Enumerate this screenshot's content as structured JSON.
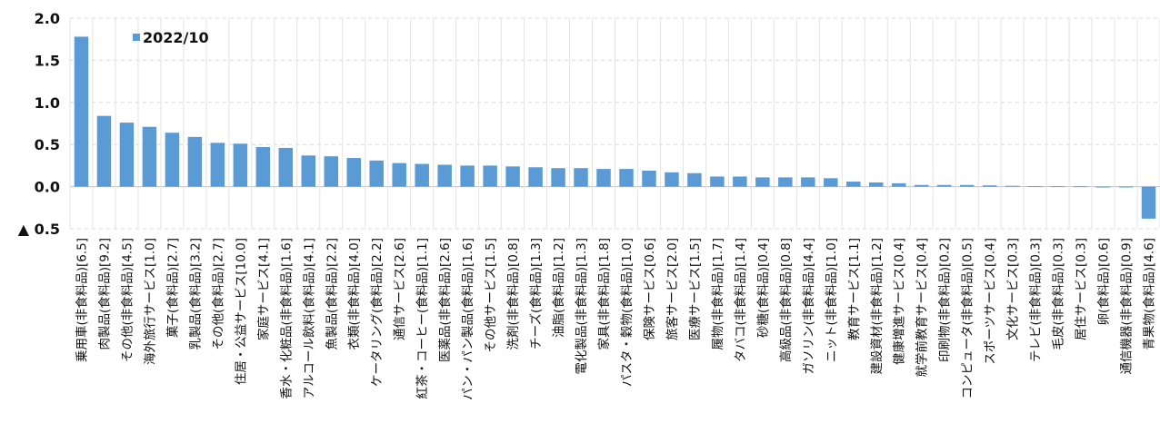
{
  "chart_data": {
    "type": "bar",
    "series": [
      {
        "name": "2022/10",
        "values": [
          1.78,
          0.84,
          0.76,
          0.71,
          0.64,
          0.59,
          0.52,
          0.51,
          0.47,
          0.46,
          0.37,
          0.36,
          0.34,
          0.31,
          0.28,
          0.27,
          0.26,
          0.25,
          0.25,
          0.24,
          0.23,
          0.22,
          0.22,
          0.21,
          0.21,
          0.19,
          0.17,
          0.16,
          0.12,
          0.12,
          0.11,
          0.11,
          0.11,
          0.1,
          0.06,
          0.05,
          0.04,
          0.02,
          0.02,
          0.02,
          0.015,
          0.01,
          0.005,
          0.005,
          0.003,
          -0.01,
          -0.01,
          -0.38
        ]
      }
    ],
    "categories": [
      "乗用車(非食料品)[6.5]",
      "肉製品(食料品)[9.2]",
      "その他(非食料品)[4.5]",
      "海外旅行サービス[1.0]",
      "菓子(食料品)[2.7]",
      "乳製品(食料品)[3.2]",
      "その他(食料品)[2.7]",
      "住居・公益サービス[10.0]",
      "家庭サービス[4.1]",
      "香水・化粧品(非食料品)[1.6]",
      "アルコール飲料(食料品)[4.1]",
      "魚製品(食料品)[2.2]",
      "衣類(非食料品)[4.0]",
      "ケータリング(食料品)[2.2]",
      "通信サービス[2.6]",
      "紅茶・コーヒー(食料品)[1.1]",
      "医薬品(非食料品)[2.6]",
      "パン・パン製品(食料品)[1.6]",
      "その他サービス[1.5]",
      "洗剤(非食料品)[0.8]",
      "チーズ(食料品)[1.3]",
      "油脂(食料品)[1.2]",
      "電化製品(非食料品)[1.3]",
      "家具(非食料品)[1.8]",
      "パスタ・穀物(食料品)[1.0]",
      "保険サービス[0.6]",
      "旅客サービス[2.0]",
      "医療サービス[1.5]",
      "履物(非食料品)[1.7]",
      "タバコ(非食料品)[1.4]",
      "砂糖(食料品)[0.4]",
      "高級品(非食料品)[0.8]",
      "ガソリン(非食料品)[4.4]",
      "ニット(非食料品)[1.0]",
      "教育サービス[1.1]",
      "建設資材(非食料品)[1.2]",
      "健康増進サービス[0.4]",
      "就学前教育サービス[0.4]",
      "印刷物(非食料品)[0.2]",
      "コンピュータ(非食料品)[0.5]",
      "スポーツサービス[0.4]",
      "文化サービス[0.3]",
      "テレビ(非食料品)[0.3]",
      "毛皮(非食料品)[0.3]",
      "居住サービス[0.3]",
      "卵(食料品)[0.6]",
      "通信機器(非食料品)[0.9]",
      "青果物(食料品)[4.6]"
    ],
    "ylim": [
      -0.5,
      2.0
    ],
    "yticks": [
      2.0,
      1.5,
      1.0,
      0.5,
      0.0,
      -0.5
    ],
    "ytick_labels": [
      "2.0",
      "1.5",
      "1.0",
      "0.5",
      "0.0",
      "▲ 0.5"
    ],
    "title": "",
    "xlabel": "",
    "ylabel": "",
    "legend_position": "top-left",
    "grid": true,
    "colors": {
      "bar": "#5b9bd5",
      "grid": "#d9d9d9",
      "text": "#111111"
    }
  }
}
